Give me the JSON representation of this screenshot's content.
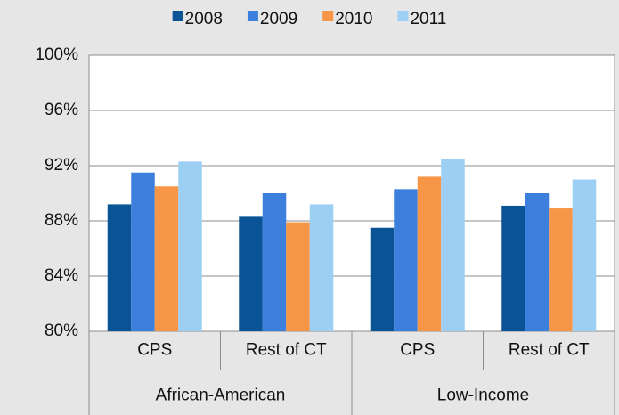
{
  "chart_data": {
    "type": "bar",
    "categories": [
      "CPS",
      "Rest of CT",
      "CPS",
      "Rest of CT"
    ],
    "groups": [
      "African-American",
      "Low-Income"
    ],
    "series": [
      {
        "name": "2008",
        "color": "#0a5496",
        "values": [
          89.2,
          88.3,
          87.5,
          89.1
        ]
      },
      {
        "name": "2009",
        "color": "#3d7fdc",
        "values": [
          91.5,
          90.0,
          90.3,
          90.0
        ]
      },
      {
        "name": "2010",
        "color": "#f79646",
        "values": [
          90.5,
          87.9,
          91.2,
          88.9
        ]
      },
      {
        "name": "2011",
        "color": "#9dcff5",
        "values": [
          92.3,
          89.2,
          92.5,
          91.0
        ]
      }
    ],
    "ylim": [
      80,
      100
    ],
    "yticks": [
      {
        "value": 80,
        "label": "80%"
      },
      {
        "value": 84,
        "label": "84%"
      },
      {
        "value": 88,
        "label": "88%"
      },
      {
        "value": 92,
        "label": "92%"
      },
      {
        "value": 96,
        "label": "96%"
      },
      {
        "value": 100,
        "label": "100%"
      }
    ],
    "grid": true,
    "legend": "top"
  }
}
